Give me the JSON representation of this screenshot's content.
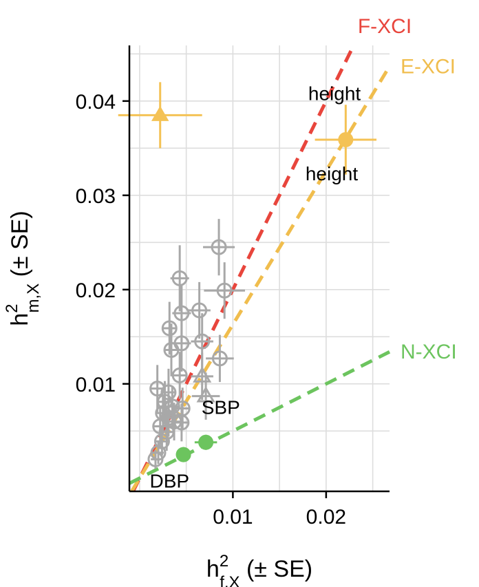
{
  "chart_data": {
    "type": "scatter",
    "xlabel": {
      "main": "h",
      "sup": "2",
      "sub": "f,X",
      "suffix": " (± SE)"
    },
    "ylabel": {
      "main": "h",
      "sup": "2",
      "sub": "m,X",
      "suffix": " (± SE)"
    },
    "xlim": [
      -0.0011,
      0.0268
    ],
    "ylim": [
      -0.0014,
      0.0459
    ],
    "x_ticks": [
      0.01,
      0.02
    ],
    "x_tick_labels": [
      "0.01",
      "0.02"
    ],
    "y_ticks": [
      0.01,
      0.02,
      0.03,
      0.04
    ],
    "y_tick_labels": [
      "0.01",
      "0.02",
      "0.03",
      "0.04"
    ],
    "grid": true,
    "grid_color": "#dddddd",
    "lines": [
      {
        "name": "F-XCI",
        "slope": 2,
        "intercept": 0,
        "color": "#e8453c"
      },
      {
        "name": "E-XCI",
        "slope": 1.63,
        "intercept": 0,
        "color": "#f0bd4d"
      },
      {
        "name": "N-XCI",
        "slope": 0.5,
        "intercept": 0,
        "color": "#6cc45e"
      }
    ],
    "colors": {
      "gray": "#a8a8a8",
      "green": "#6cc45e",
      "orange": "#f4c255"
    },
    "points": [
      {
        "x": 0.0022,
        "y": 0.0385,
        "xe": 0.0045,
        "ye": 0.0035,
        "shape": "triangle",
        "fill": true,
        "color": "orange"
      },
      {
        "x": 0.0221,
        "y": 0.0359,
        "xe": 0.0033,
        "ye": 0.0037,
        "shape": "circle",
        "fill": true,
        "color": "orange"
      },
      {
        "x": 0.0047,
        "y": 0.0025,
        "xe": 0.0008,
        "ye": 0.0008,
        "shape": "circle",
        "fill": true,
        "color": "green"
      },
      {
        "x": 0.0071,
        "y": 0.0038,
        "xe": 0.0012,
        "ye": 0.0008,
        "shape": "circle",
        "fill": true,
        "color": "green"
      },
      {
        "x": 0.0085,
        "y": 0.0245,
        "xe": 0.0017,
        "ye": 0.003,
        "shape": "circle",
        "fill": false,
        "color": "gray"
      },
      {
        "x": 0.0091,
        "y": 0.0199,
        "xe": 0.0022,
        "ye": 0.003,
        "shape": "circle",
        "fill": false,
        "color": "gray"
      },
      {
        "x": 0.0043,
        "y": 0.0212,
        "xe": 0.001,
        "ye": 0.0035,
        "shape": "circle",
        "fill": false,
        "color": "gray"
      },
      {
        "x": 0.0045,
        "y": 0.0175,
        "xe": 0.001,
        "ye": 0.003,
        "shape": "circle",
        "fill": false,
        "color": "gray"
      },
      {
        "x": 0.0064,
        "y": 0.0178,
        "xe": 0.0012,
        "ye": 0.003,
        "shape": "circle",
        "fill": false,
        "color": "gray"
      },
      {
        "x": 0.0032,
        "y": 0.0159,
        "xe": 0.0008,
        "ye": 0.0028,
        "shape": "circle",
        "fill": false,
        "color": "gray"
      },
      {
        "x": 0.0034,
        "y": 0.0136,
        "xe": 0.0008,
        "ye": 0.0028,
        "shape": "circle",
        "fill": false,
        "color": "gray"
      },
      {
        "x": 0.0045,
        "y": 0.0143,
        "xe": 0.001,
        "ye": 0.003,
        "shape": "circle",
        "fill": false,
        "color": "gray"
      },
      {
        "x": 0.0067,
        "y": 0.0145,
        "xe": 0.0012,
        "ye": 0.003,
        "shape": "circle",
        "fill": false,
        "color": "gray"
      },
      {
        "x": 0.0086,
        "y": 0.0127,
        "xe": 0.0015,
        "ye": 0.0025,
        "shape": "circle",
        "fill": false,
        "color": "gray"
      },
      {
        "x": 0.0043,
        "y": 0.0109,
        "xe": 0.0008,
        "ye": 0.0025,
        "shape": "circle",
        "fill": false,
        "color": "gray"
      },
      {
        "x": 0.0067,
        "y": 0.0108,
        "xe": 0.0012,
        "ye": 0.0025,
        "shape": "triangle",
        "fill": false,
        "color": "gray"
      },
      {
        "x": 0.0071,
        "y": 0.0087,
        "xe": 0.0015,
        "ye": 0.0025,
        "shape": "triangle",
        "fill": false,
        "color": "gray"
      },
      {
        "x": 0.0019,
        "y": 0.0095,
        "xe": 0.0007,
        "ye": 0.0025,
        "shape": "circle",
        "fill": false,
        "color": "gray"
      },
      {
        "x": 0.0031,
        "y": 0.0091,
        "xe": 0.0008,
        "ye": 0.0025,
        "shape": "circle",
        "fill": false,
        "color": "gray"
      },
      {
        "x": 0.0027,
        "y": 0.0081,
        "xe": 0.0008,
        "ye": 0.0022,
        "shape": "circle",
        "fill": false,
        "color": "gray"
      },
      {
        "x": 0.0035,
        "y": 0.0076,
        "xe": 0.0008,
        "ye": 0.0022,
        "shape": "circle",
        "fill": false,
        "color": "gray"
      },
      {
        "x": 0.0046,
        "y": 0.0074,
        "xe": 0.0008,
        "ye": 0.0022,
        "shape": "circle",
        "fill": false,
        "color": "gray"
      },
      {
        "x": 0.0025,
        "y": 0.0069,
        "xe": 0.0008,
        "ye": 0.002,
        "shape": "circle",
        "fill": false,
        "color": "gray"
      },
      {
        "x": 0.0031,
        "y": 0.0064,
        "xe": 0.0008,
        "ye": 0.002,
        "shape": "circle",
        "fill": false,
        "color": "gray"
      },
      {
        "x": 0.0037,
        "y": 0.006,
        "xe": 0.0008,
        "ye": 0.002,
        "shape": "circle",
        "fill": false,
        "color": "gray"
      },
      {
        "x": 0.0045,
        "y": 0.0059,
        "xe": 0.0008,
        "ye": 0.002,
        "shape": "circle",
        "fill": false,
        "color": "gray"
      },
      {
        "x": 0.0022,
        "y": 0.0055,
        "xe": 0.0007,
        "ye": 0.002,
        "shape": "circle",
        "fill": false,
        "color": "gray"
      },
      {
        "x": 0.0029,
        "y": 0.0049,
        "xe": 0.0008,
        "ye": 0.002,
        "shape": "circle",
        "fill": false,
        "color": "gray"
      },
      {
        "x": 0.0024,
        "y": 0.0039,
        "xe": 0.0007,
        "ye": 0.0015,
        "shape": "circle",
        "fill": false,
        "color": "gray"
      },
      {
        "x": 0.002,
        "y": 0.0027,
        "xe": 0.0006,
        "ye": 0.0012,
        "shape": "circle",
        "fill": false,
        "color": "gray"
      },
      {
        "x": 0.0017,
        "y": 0.002,
        "xe": 0.0005,
        "ye": 0.001,
        "shape": "circle",
        "fill": false,
        "color": "gray"
      }
    ],
    "annotations": [
      {
        "text": "height",
        "x": 0.0209,
        "y": 0.0401
      },
      {
        "text": "height",
        "x": 0.0206,
        "y": 0.0316
      },
      {
        "text": "SBP",
        "x": 0.0087,
        "y": 0.0068
      },
      {
        "text": "DBP",
        "x": 0.0032,
        "y": -0.001
      }
    ]
  }
}
